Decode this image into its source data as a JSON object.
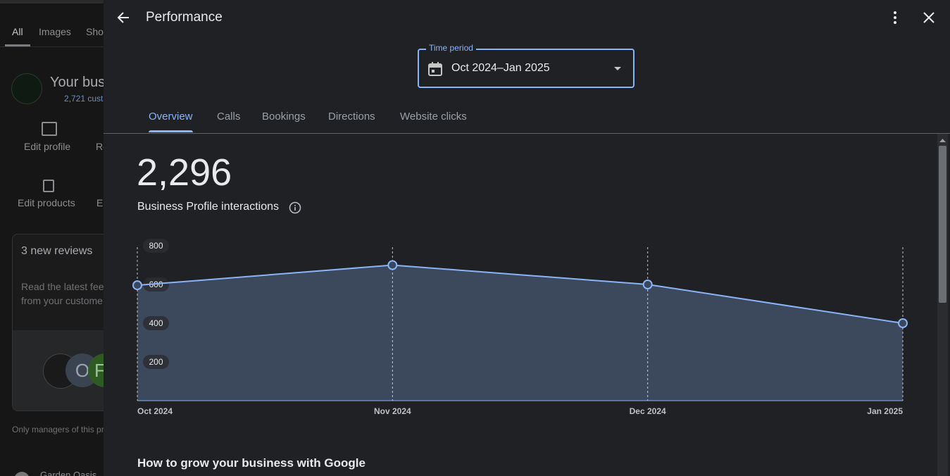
{
  "left_panel": {
    "tabs": [
      "All",
      "Images",
      "Sho"
    ],
    "business_name": "Your bus",
    "customers": "2,721 cust",
    "actions": [
      "Edit profile",
      "Re",
      "Edit products",
      "Ed"
    ],
    "reviews_card": {
      "title": "3 new reviews",
      "text": [
        "Read the latest fee",
        "from your custome"
      ],
      "avatars": [
        "O",
        "F"
      ]
    },
    "footnote": "Only managers of this pr",
    "bottom_item": "Garden Oasis"
  },
  "modal": {
    "title": "Performance",
    "time_period": {
      "label": "Time period",
      "value": "Oct 2024–Jan 2025"
    },
    "tabs": [
      "Overview",
      "Calls",
      "Bookings",
      "Directions",
      "Website clicks"
    ],
    "total": "2,296",
    "metric_label": "Business Profile interactions",
    "section_heading": "How to grow your business with Google"
  },
  "chart_data": {
    "type": "line",
    "categories": [
      "Oct 2024",
      "Nov 2024",
      "Dec 2024",
      "Jan 2025"
    ],
    "values": [
      596,
      700,
      600,
      400
    ],
    "color": "#8ab4f8",
    "area": true,
    "ylim": [
      0,
      800
    ],
    "yticks": [
      200,
      400,
      600,
      800
    ],
    "grid": false
  }
}
